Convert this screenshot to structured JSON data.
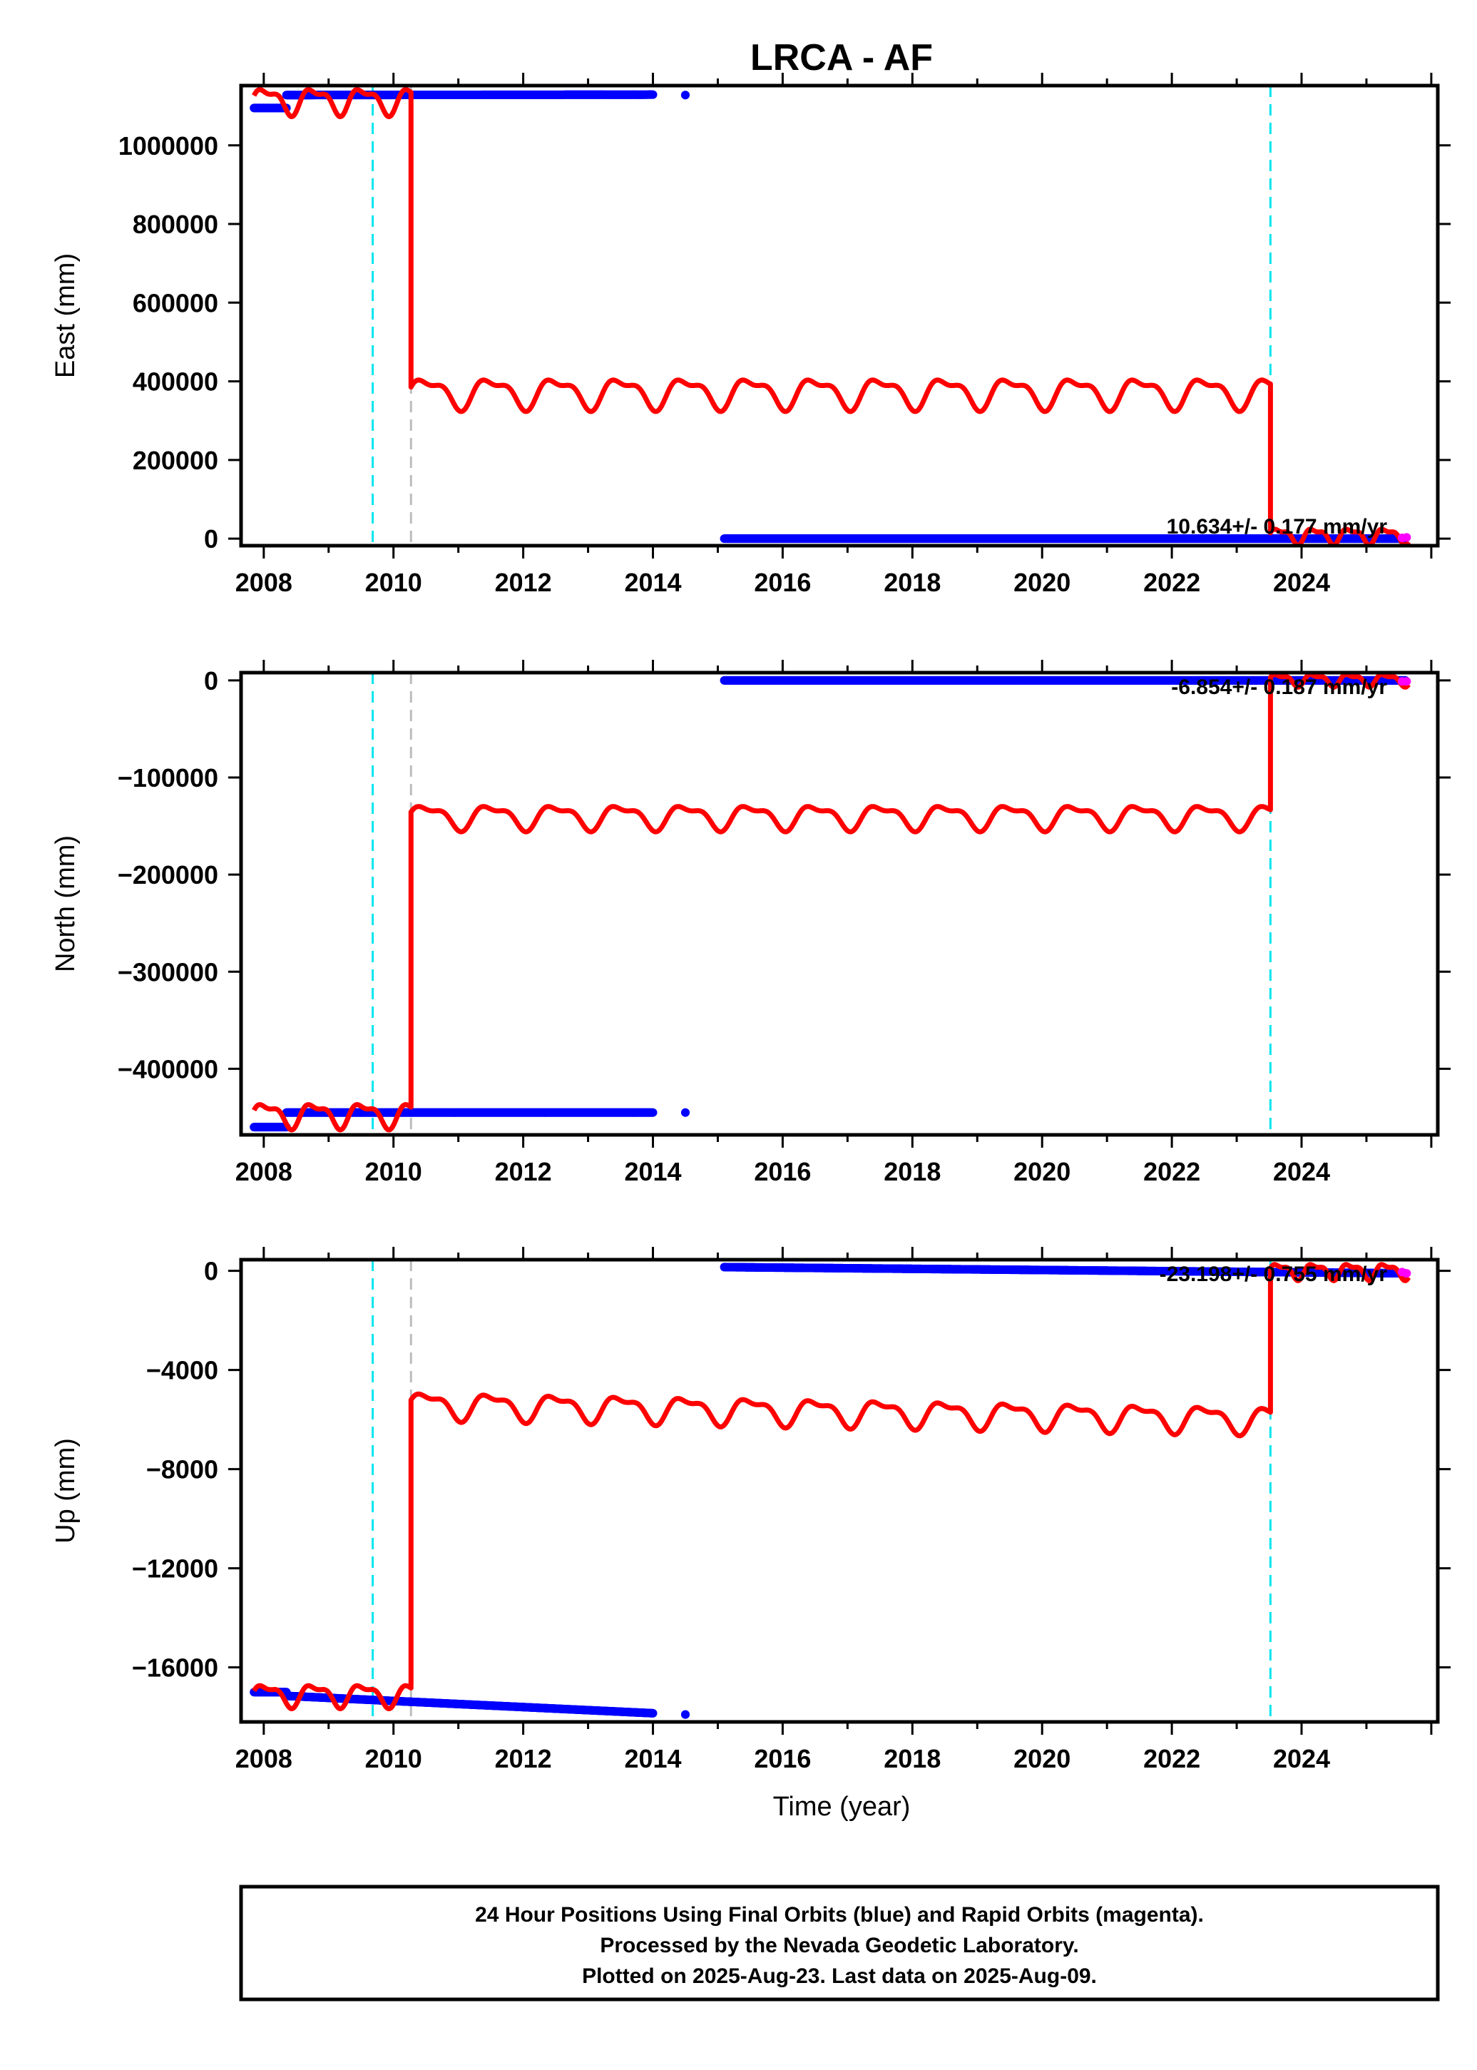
{
  "title": "LRCA - AF",
  "colors": {
    "final": "#0000ff",
    "rapid": "#ff00ff",
    "model": "#ff0000",
    "event_antenna": "#00e5ee",
    "event_other": "#bdbdbd"
  },
  "xlabel": "Time (year)",
  "footer": [
    "24 Hour Positions Using Final Orbits (blue) and Rapid Orbits (magenta).",
    "Processed by the Nevada Geodetic Laboratory.",
    "Plotted on 2025-Aug-23. Last data on 2025-Aug-09."
  ],
  "chart_data": [
    {
      "type": "scatter",
      "component": "East",
      "ylabel": "East (mm)",
      "xlim": [
        2007.65,
        2026.1
      ],
      "ylim": [
        -18000,
        1152000
      ],
      "xticks": [
        2008,
        2010,
        2012,
        2014,
        2016,
        2018,
        2020,
        2022,
        2024
      ],
      "yticks": [
        0,
        200000,
        400000,
        600000,
        800000,
        1000000
      ],
      "rate_label": "10.634+/- 0.177 mm/yr",
      "events": [
        {
          "x": 2009.68,
          "kind": "antenna"
        },
        {
          "x": 2010.27,
          "kind": "other"
        },
        {
          "x": 2023.52,
          "kind": "antenna"
        }
      ],
      "series": [
        {
          "role": "final",
          "segments": [
            {
              "x0": 2007.85,
              "x1": 2008.35,
              "y0": 1095000,
              "y1": 1095000
            },
            {
              "x0": 2008.35,
              "x1": 2014.0,
              "y0": 1128000,
              "y1": 1129000
            },
            {
              "x0": 2014.5,
              "x1": 2014.5,
              "y0": 1128000,
              "y1": 1128000
            },
            {
              "x0": 2015.1,
              "x1": 2025.6,
              "y0": 0,
              "y1": 0
            }
          ]
        },
        {
          "role": "rapid",
          "points": [
            {
              "x": 2025.55,
              "y": 2000
            },
            {
              "x": 2025.62,
              "y": 3000
            }
          ]
        },
        {
          "role": "model",
          "segments": [
            {
              "x0": 2007.85,
              "x1": 2010.27,
              "base": 1115000,
              "trend": 0,
              "amp": 37000,
              "period": 0.75
            },
            {
              "x0": 2010.27,
              "x1": 2023.52,
              "base": 372000,
              "trend": 0,
              "amp": 43000,
              "period": 1.0
            },
            {
              "x0": 2023.52,
              "x1": 2025.65,
              "base": 8000,
              "trend": 0,
              "amp": 22000,
              "period": 0.55
            }
          ]
        }
      ]
    },
    {
      "type": "scatter",
      "component": "North",
      "ylabel": "North (mm)",
      "xlim": [
        2007.65,
        2026.1
      ],
      "ylim": [
        -468000,
        8000
      ],
      "xticks": [
        2008,
        2010,
        2012,
        2014,
        2016,
        2018,
        2020,
        2022,
        2024
      ],
      "yticks": [
        0,
        -100000,
        -200000,
        -300000,
        -400000
      ],
      "rate_label": "-6.854+/- 0.187 mm/yr",
      "events": [
        {
          "x": 2009.68,
          "kind": "antenna"
        },
        {
          "x": 2010.27,
          "kind": "other"
        },
        {
          "x": 2023.52,
          "kind": "antenna"
        }
      ],
      "series": [
        {
          "role": "final",
          "segments": [
            {
              "x0": 2007.85,
              "x1": 2008.35,
              "y0": -460000,
              "y1": -460000
            },
            {
              "x0": 2008.35,
              "x1": 2014.0,
              "y0": -445000,
              "y1": -445000
            },
            {
              "x0": 2014.5,
              "x1": 2014.5,
              "y0": -445000,
              "y1": -445000
            },
            {
              "x0": 2015.1,
              "x1": 2025.6,
              "y0": 0,
              "y1": 0
            }
          ]
        },
        {
          "role": "rapid",
          "points": [
            {
              "x": 2025.55,
              "y": -1000
            },
            {
              "x": 2025.62,
              "y": -1000
            }
          ]
        },
        {
          "role": "model",
          "segments": [
            {
              "x0": 2007.85,
              "x1": 2010.27,
              "base": -447000,
              "trend": 0,
              "amp": 14000,
              "period": 0.75
            },
            {
              "x0": 2010.27,
              "x1": 2023.52,
              "base": -140000,
              "trend": 0,
              "amp": 14000,
              "period": 1.0
            },
            {
              "x0": 2023.52,
              "x1": 2025.65,
              "base": 1000,
              "trend": 0,
              "amp": 7000,
              "period": 0.55
            }
          ]
        }
      ]
    },
    {
      "type": "scatter",
      "component": "Up",
      "ylabel": "Up (mm)",
      "xlim": [
        2007.65,
        2026.1
      ],
      "ylim": [
        -18200,
        450
      ],
      "xticks": [
        2008,
        2010,
        2012,
        2014,
        2016,
        2018,
        2020,
        2022,
        2024
      ],
      "yticks": [
        0,
        -4000,
        -8000,
        -12000,
        -16000
      ],
      "rate_label": "-23.198+/- 0.755 mm/yr",
      "events": [
        {
          "x": 2009.68,
          "kind": "antenna"
        },
        {
          "x": 2010.27,
          "kind": "other"
        },
        {
          "x": 2023.52,
          "kind": "antenna"
        }
      ],
      "series": [
        {
          "role": "final",
          "segments": [
            {
              "x0": 2007.85,
              "x1": 2008.35,
              "y0": -17000,
              "y1": -17000
            },
            {
              "x0": 2008.35,
              "x1": 2014.0,
              "y0": -17150,
              "y1": -17850
            },
            {
              "x0": 2014.5,
              "x1": 2014.5,
              "y0": -17900,
              "y1": -17900
            },
            {
              "x0": 2015.1,
              "x1": 2025.6,
              "y0": 150,
              "y1": -100
            }
          ]
        },
        {
          "role": "rapid",
          "points": [
            {
              "x": 2025.55,
              "y": -50
            },
            {
              "x": 2025.62,
              "y": -100
            }
          ]
        },
        {
          "role": "model",
          "segments": [
            {
              "x0": 2007.85,
              "x1": 2010.27,
              "base": -17100,
              "trend": 0,
              "amp": 500,
              "period": 0.75
            },
            {
              "x0": 2010.27,
              "x1": 2023.52,
              "base": -5400,
              "trend": -45,
              "amp": 600,
              "period": 1.0
            },
            {
              "x0": 2023.52,
              "x1": 2025.65,
              "base": 0,
              "trend": 0,
              "amp": 350,
              "period": 0.55
            }
          ]
        }
      ]
    }
  ]
}
